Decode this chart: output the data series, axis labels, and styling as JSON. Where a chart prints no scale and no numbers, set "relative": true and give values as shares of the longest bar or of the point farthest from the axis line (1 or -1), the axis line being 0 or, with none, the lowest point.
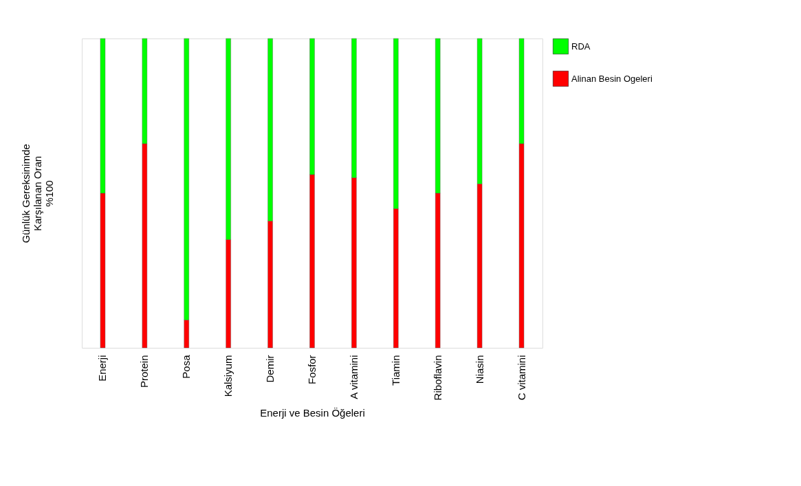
{
  "chart_data": {
    "type": "bar",
    "stacked": true,
    "relative": true,
    "xlabel": "Enerji ve Besin Öğeleri",
    "ylabel": "Günlük Gereksinimde\nKarşılanan Oran\n%100",
    "categories": [
      "Enerji",
      "Protein",
      "Posa",
      "Kalsiyum",
      "Demir",
      "Fosfor",
      "A vitamini",
      "Tiamin",
      "Riboflavin",
      "Niasin",
      "C vitamini"
    ],
    "series": [
      {
        "name": "Alinan Besin Ogeleri",
        "color": "#ff0000",
        "values": [
          0.5,
          0.66,
          0.09,
          0.35,
          0.41,
          0.56,
          0.55,
          0.45,
          0.5,
          0.53,
          0.66
        ]
      },
      {
        "name": "RDA",
        "color": "#00ff00",
        "values": [
          0.5,
          0.34,
          0.91,
          0.65,
          0.59,
          0.44,
          0.45,
          0.55,
          0.5,
          0.47,
          0.34
        ]
      }
    ],
    "legend": "right",
    "grid": false
  }
}
